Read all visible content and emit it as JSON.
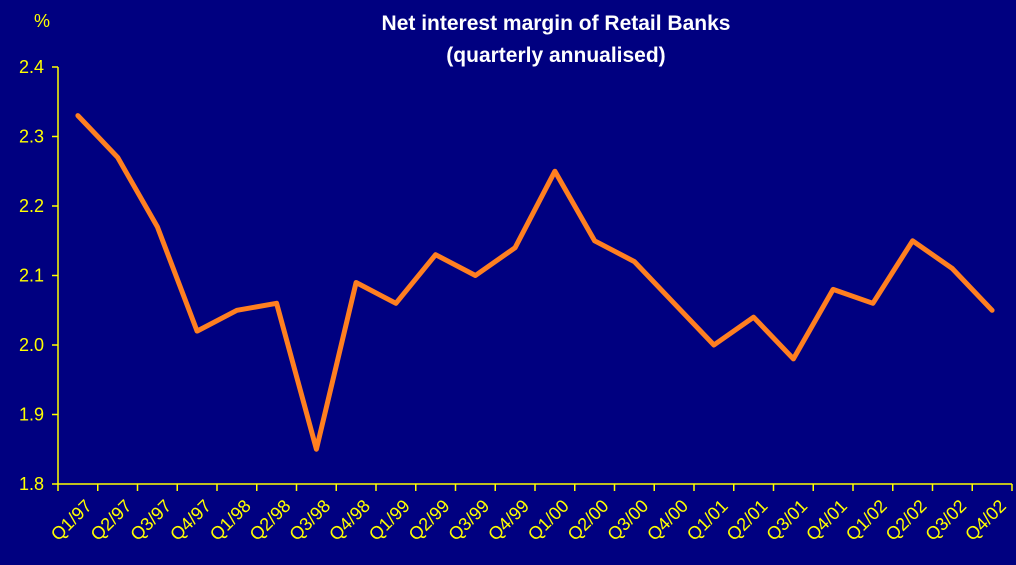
{
  "colors": {
    "background": "#000080",
    "axis": "#FFFF00",
    "text": "#FFFF00",
    "title": "#FFFFFF",
    "line": "#FF7F20"
  },
  "chart_data": {
    "type": "line",
    "title": "Net interest margin of Retail Banks",
    "subtitle": "(quarterly annualised)",
    "ylabel": "%",
    "xlabel": "",
    "ylim": [
      1.8,
      2.4
    ],
    "yticks": [
      "1.8",
      "1.9",
      "2.0",
      "2.1",
      "2.2",
      "2.3",
      "2.4"
    ],
    "grid": false,
    "categories": [
      "Q1/97",
      "Q2/97",
      "Q3/97",
      "Q4/97",
      "Q1/98",
      "Q2/98",
      "Q3/98",
      "Q4/98",
      "Q1/99",
      "Q2/99",
      "Q3/99",
      "Q4/99",
      "Q1/00",
      "Q2/00",
      "Q3/00",
      "Q4/00",
      "Q1/01",
      "Q2/01",
      "Q3/01",
      "Q4/01",
      "Q1/02",
      "Q2/02",
      "Q3/02",
      "Q4/02"
    ],
    "series": [
      {
        "values": [
          2.33,
          2.27,
          2.17,
          2.02,
          2.05,
          2.06,
          1.85,
          2.09,
          2.06,
          2.13,
          2.1,
          2.14,
          2.25,
          2.15,
          2.12,
          2.06,
          2.0,
          2.04,
          1.98,
          2.08,
          2.06,
          2.15,
          2.11,
          2.05
        ]
      }
    ]
  }
}
